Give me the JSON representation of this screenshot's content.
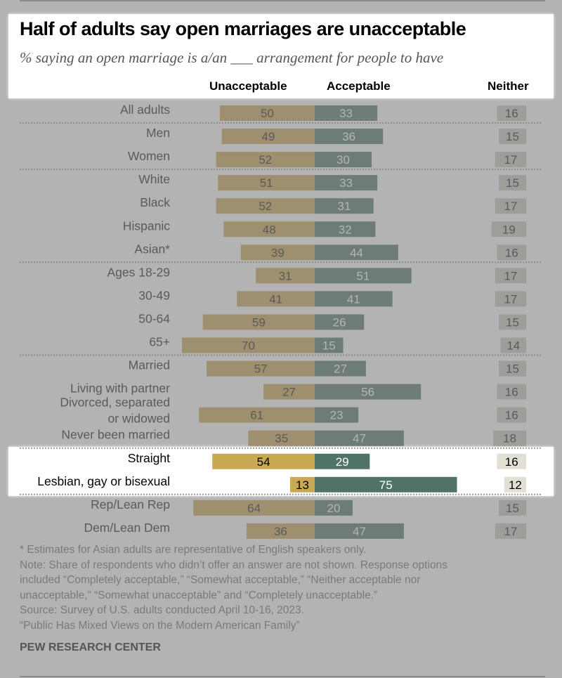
{
  "title": "Half of adults say open marriages are unacceptable",
  "subtitle": "% saying an open marriage is a/an ___ arrangement for people to have",
  "columns": {
    "unacceptable": "Unacceptable",
    "acceptable": "Acceptable",
    "neither": "Neither"
  },
  "colors": {
    "unacceptable_highlight": "#c9a954",
    "acceptable_highlight": "#4f7467",
    "neither_highlight": "#e2dfd4",
    "unacceptable_dim": "#9e8f6f",
    "acceptable_dim": "#6d7c75",
    "neither_dim": "#9d9d9a",
    "background_dim": "#b3b3b3"
  },
  "chart_data": {
    "type": "bar",
    "orientation": "horizontal diverging",
    "title": "Half of adults say open marriages are unacceptable",
    "categories": [
      "All adults",
      "Men",
      "Women",
      "White",
      "Black",
      "Hispanic",
      "Asian*",
      "Ages 18-29",
      "30-49",
      "50-64",
      "65+",
      "Married",
      "Living with partner",
      "Divorced, separated or widowed",
      "Never been married",
      "Straight",
      "Lesbian, gay or bisexual",
      "Rep/Lean Rep",
      "Dem/Lean Dem"
    ],
    "series": [
      {
        "name": "Unacceptable",
        "values": [
          50,
          49,
          52,
          51,
          52,
          48,
          39,
          31,
          41,
          59,
          70,
          57,
          27,
          61,
          35,
          54,
          13,
          64,
          36
        ]
      },
      {
        "name": "Acceptable",
        "values": [
          33,
          36,
          30,
          33,
          31,
          32,
          44,
          51,
          41,
          26,
          15,
          27,
          56,
          23,
          47,
          29,
          75,
          20,
          47
        ]
      },
      {
        "name": "Neither",
        "values": [
          16,
          15,
          17,
          15,
          17,
          19,
          16,
          17,
          17,
          15,
          14,
          15,
          16,
          16,
          18,
          16,
          12,
          15,
          17
        ]
      }
    ],
    "highlighted": [
      "Straight",
      "Lesbian, gay or bisexual"
    ],
    "groups_break_after": [
      "All adults",
      "Women",
      "Asian*",
      "65+",
      "Never been married",
      "Lesbian, gay or bisexual"
    ]
  },
  "notes": [
    "* Estimates for Asian adults are representative of English speakers only.",
    "Note: Share of respondents who didn’t offer an answer are not shown. Response options",
    "included “Completely acceptable,” “Somewhat acceptable,” “Neither acceptable nor",
    "unacceptable,” “Somewhat unacceptable” and “Completely unacceptable.”",
    "Source: Survey of U.S. adults conducted April 10-16, 2023.",
    "“Public Has Mixed Views on the Modern American Family”"
  ],
  "brand": "PEW RESEARCH CENTER"
}
